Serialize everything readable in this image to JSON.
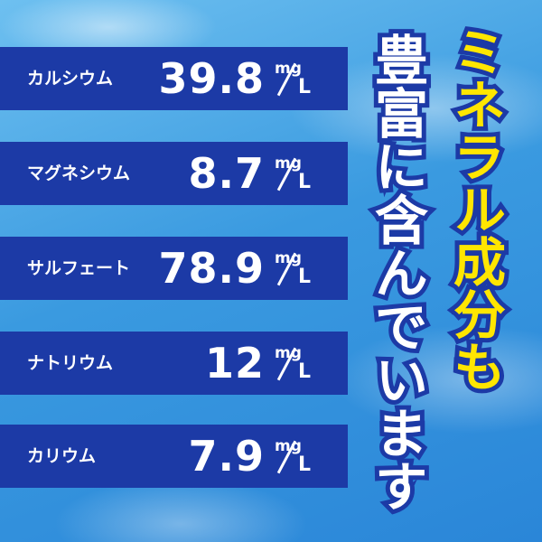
{
  "rows": [
    {
      "label": "カルシウム",
      "value": "39.8"
    },
    {
      "label": "マグネシウム",
      "value": "8.7"
    },
    {
      "label": "サルフェート",
      "value": "78.9"
    },
    {
      "label": "ナトリウム",
      "value": "12"
    },
    {
      "label": "カリウム",
      "value": "7.9"
    }
  ],
  "unit": {
    "top": "mg",
    "bottom": "L"
  },
  "headline": {
    "first": "ミネラル成分も",
    "second": "豊富に含んでいます"
  }
}
